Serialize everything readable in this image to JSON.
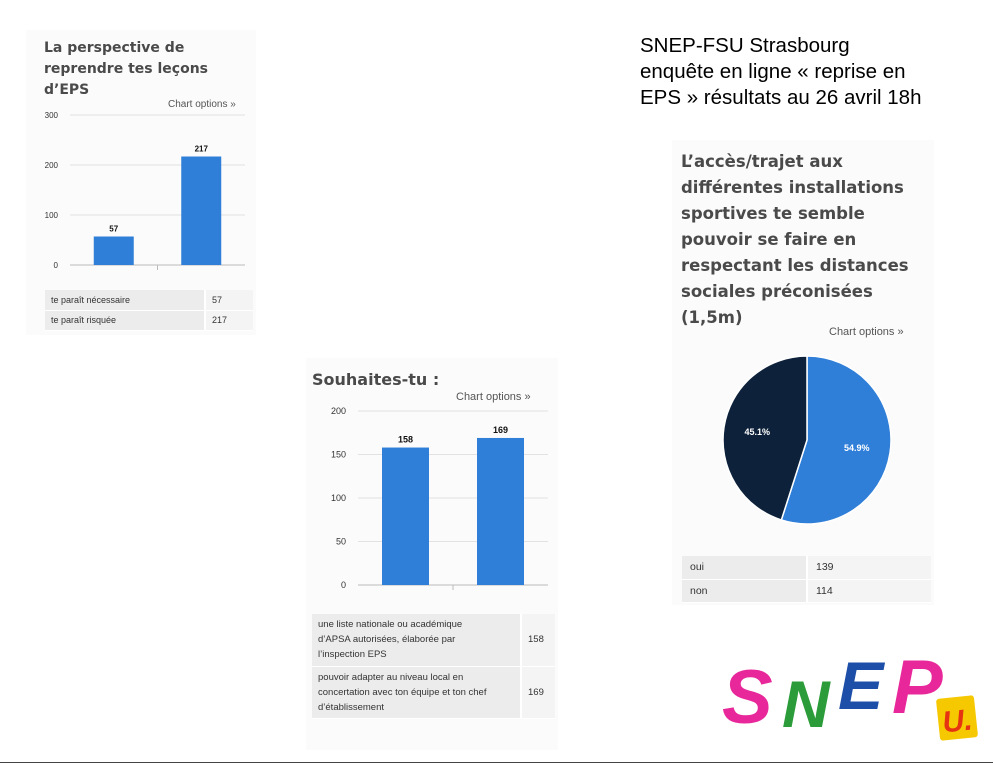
{
  "header": {
    "lines": [
      "SNEP-FSU Strasbourg",
      "enquête en ligne « reprise en",
      "EPS » résultats au 26 avril 18h"
    ]
  },
  "chart_options_label": "Chart options »",
  "logo": {
    "text": "SNEP",
    "badge": "U.",
    "colors": [
      "#e8289a",
      "#2c9c3a",
      "#1e4fa8",
      "#e8289a",
      "#f5c800",
      "#e63312"
    ]
  },
  "colors": {
    "bar": "#2f7ed8",
    "pie_blue": "#2f7ed8",
    "pie_dark": "#0d223a"
  },
  "chart_data": [
    {
      "type": "bar",
      "title_lines": [
        "La perspective de",
        "reprendre tes leçons",
        "d’EPS"
      ],
      "categories": [
        "te paraît nécessaire",
        "te paraît risquée"
      ],
      "values": [
        57,
        217
      ],
      "ylim": [
        0,
        300
      ],
      "yticks": [
        0,
        100,
        200,
        300
      ],
      "grid": true,
      "table": [
        {
          "label": "te paraît nécessaire",
          "value": "57"
        },
        {
          "label": "te paraît risquée",
          "value": "217"
        }
      ]
    },
    {
      "type": "bar",
      "title_lines": [
        "Souhaites-tu :"
      ],
      "categories": [
        "une liste nationale ou académique d’APSA autorisées, élaborée par l’inspection EPS",
        "pouvoir adapter au niveau local en concertation avec ton équipe et ton chef d’établissement"
      ],
      "values": [
        158,
        169
      ],
      "ylim": [
        0,
        200
      ],
      "yticks": [
        0,
        50,
        100,
        150,
        200
      ],
      "grid": true,
      "table": [
        {
          "label_lines": [
            "une liste nationale ou académique",
            "d’APSA autorisées, élaborée par",
            "l’inspection EPS"
          ],
          "value": "158"
        },
        {
          "label_lines": [
            "pouvoir adapter au niveau local en",
            "concertation avec ton équipe et ton chef",
            "d’établissement"
          ],
          "value": "169"
        }
      ]
    },
    {
      "type": "pie",
      "title_lines": [
        "L’accès/trajet aux",
        "différentes installations",
        "sportives te semble",
        "pouvoir se faire en",
        "respectant les distances",
        "sociales préconisées",
        "(1,5m)"
      ],
      "categories": [
        "oui",
        "non"
      ],
      "values": [
        139,
        114
      ],
      "slice_labels": [
        "54.9%",
        "45.1%"
      ],
      "table": [
        {
          "label": "oui",
          "value": "139"
        },
        {
          "label": "non",
          "value": "114"
        }
      ]
    }
  ]
}
